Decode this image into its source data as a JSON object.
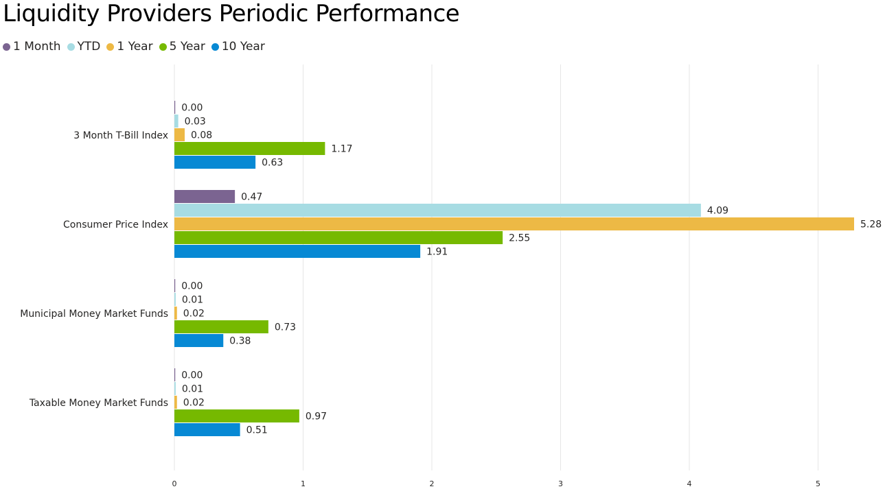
{
  "chart_data": {
    "type": "bar",
    "orientation": "horizontal",
    "title": "Liquidity Providers Periodic Performance",
    "xlabel": "",
    "ylabel": "",
    "xlim": [
      0,
      5.35
    ],
    "x_ticks": [
      "0",
      "1",
      "2",
      "3",
      "4",
      "5"
    ],
    "grid": true,
    "legend_position": "top-left",
    "categories": [
      "3 Month T-Bill Index",
      "Consumer Price Index",
      "Municipal Money Market Funds",
      "Taxable Money Market Funds"
    ],
    "series": [
      {
        "name": "1 Month",
        "color": "#7B6491",
        "values": [
          0.0,
          0.47,
          0.0,
          0.0
        ],
        "labels": [
          "0.00",
          "0.47",
          "0.00",
          "0.00"
        ]
      },
      {
        "name": "YTD",
        "color": "#A7DCE3",
        "values": [
          0.03,
          4.09,
          0.01,
          0.01
        ],
        "labels": [
          "0.03",
          "4.09",
          "0.01",
          "0.01"
        ]
      },
      {
        "name": "1 Year",
        "color": "#EDB945",
        "values": [
          0.08,
          5.28,
          0.02,
          0.02
        ],
        "labels": [
          "0.08",
          "5.28",
          "0.02",
          "0.02"
        ]
      },
      {
        "name": "5 Year",
        "color": "#76B900",
        "values": [
          1.17,
          2.55,
          0.73,
          0.97
        ],
        "labels": [
          "1.17",
          "2.55",
          "0.73",
          "0.97"
        ]
      },
      {
        "name": "10 Year",
        "color": "#0789D4",
        "values": [
          0.63,
          1.91,
          0.38,
          0.51
        ],
        "labels": [
          "0.63",
          "1.91",
          "0.38",
          "0.51"
        ]
      }
    ]
  }
}
